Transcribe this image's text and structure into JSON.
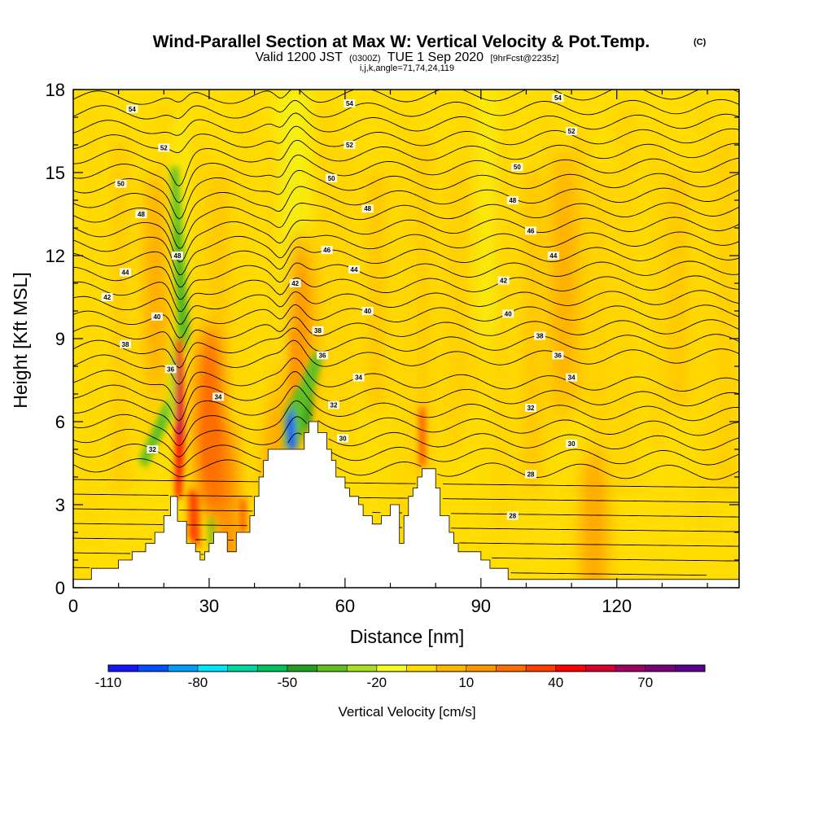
{
  "chart_data": {
    "type": "heatmap",
    "title": "Wind-Parallel Section at Max W: Vertical Velocity & Pot.Temp.",
    "title_mark": "(C)",
    "subtitle": {
      "valid": "Valid 1200 JST",
      "utc": "(0300Z)",
      "date": "TUE 1 Sep 2020",
      "fcst": "[9hrFcst@2235z]"
    },
    "info_line": "i,j,k,angle=71,74,24,119",
    "xlabel": "Distance [nm]",
    "ylabel": "Height [Kft MSL]",
    "xlim": [
      0,
      147
    ],
    "ylim": [
      0,
      18
    ],
    "xticks": [
      0,
      30,
      60,
      90,
      120
    ],
    "xtick_labels": [
      "0",
      "30",
      "60",
      "90",
      "120"
    ],
    "yticks": [
      0,
      3,
      6,
      9,
      12,
      15,
      18
    ],
    "ytick_labels": [
      "0",
      "3",
      "6",
      "9",
      "12",
      "15",
      "18"
    ],
    "colorbar": {
      "label": "Vertical Velocity [cm/s]",
      "tick_labels": [
        "-110",
        "-80",
        "-50",
        "-20",
        "10",
        "40",
        "70"
      ],
      "colors": [
        "#1414ff",
        "#0050ff",
        "#009dff",
        "#00e6ff",
        "#00d6a0",
        "#00c060",
        "#20a020",
        "#60c020",
        "#a8e020",
        "#f0ff20",
        "#ffdd00",
        "#ffb400",
        "#ff9600",
        "#ff6e00",
        "#ff3c00",
        "#ff0000",
        "#d80030",
        "#a00060",
        "#780078",
        "#5a0090"
      ]
    },
    "terrain_profile": [
      [
        0,
        0.3
      ],
      [
        4,
        0.3
      ],
      [
        4,
        0.7
      ],
      [
        10,
        0.7
      ],
      [
        10,
        1.0
      ],
      [
        13,
        1.0
      ],
      [
        13,
        1.3
      ],
      [
        16,
        1.3
      ],
      [
        16,
        1.6
      ],
      [
        18,
        1.6
      ],
      [
        18,
        2.0
      ],
      [
        20,
        2.0
      ],
      [
        20,
        2.6
      ],
      [
        21.5,
        2.6
      ],
      [
        21.5,
        3.3
      ],
      [
        23,
        3.3
      ],
      [
        23,
        2.4
      ],
      [
        25,
        2.4
      ],
      [
        25,
        1.6
      ],
      [
        27,
        1.6
      ],
      [
        27,
        1.3
      ],
      [
        28,
        1.3
      ],
      [
        28,
        1.0
      ],
      [
        29,
        1.0
      ],
      [
        29,
        1.3
      ],
      [
        30,
        1.3
      ],
      [
        30,
        1.6
      ],
      [
        31,
        1.6
      ],
      [
        31,
        2.0
      ],
      [
        34,
        2.0
      ],
      [
        34,
        1.3
      ],
      [
        36,
        1.3
      ],
      [
        36,
        2.0
      ],
      [
        39,
        2.0
      ],
      [
        39,
        2.6
      ],
      [
        40,
        2.6
      ],
      [
        40,
        3.3
      ],
      [
        41,
        3.3
      ],
      [
        41,
        4.0
      ],
      [
        42,
        4.0
      ],
      [
        42,
        4.6
      ],
      [
        43,
        4.6
      ],
      [
        43,
        5.0
      ],
      [
        51,
        5.0
      ],
      [
        51,
        5.6
      ],
      [
        52,
        5.6
      ],
      [
        52,
        6.0
      ],
      [
        54,
        6.0
      ],
      [
        54,
        5.6
      ],
      [
        56,
        5.6
      ],
      [
        56,
        5.0
      ],
      [
        57,
        5.0
      ],
      [
        57,
        4.6
      ],
      [
        58,
        4.6
      ],
      [
        58,
        4.0
      ],
      [
        60,
        4.0
      ],
      [
        60,
        3.6
      ],
      [
        61,
        3.6
      ],
      [
        61,
        3.3
      ],
      [
        63,
        3.3
      ],
      [
        63,
        3.0
      ],
      [
        64,
        3.0
      ],
      [
        64,
        2.6
      ],
      [
        66,
        2.6
      ],
      [
        66,
        2.3
      ],
      [
        68,
        2.3
      ],
      [
        68,
        2.6
      ],
      [
        70,
        2.6
      ],
      [
        70,
        3.0
      ],
      [
        72,
        3.0
      ],
      [
        72,
        1.6
      ],
      [
        73,
        1.6
      ],
      [
        73,
        2.6
      ],
      [
        74,
        2.6
      ],
      [
        74,
        3.3
      ],
      [
        75,
        3.3
      ],
      [
        75,
        3.6
      ],
      [
        76,
        3.6
      ],
      [
        76,
        4.0
      ],
      [
        77,
        4.0
      ],
      [
        77,
        4.3
      ],
      [
        80,
        4.3
      ],
      [
        80,
        3.6
      ],
      [
        81,
        3.6
      ],
      [
        81,
        2.6
      ],
      [
        83,
        2.6
      ],
      [
        83,
        2.0
      ],
      [
        84,
        2.0
      ],
      [
        84,
        1.6
      ],
      [
        85,
        1.6
      ],
      [
        85,
        1.3
      ],
      [
        90,
        1.3
      ],
      [
        90,
        1.0
      ],
      [
        92,
        1.0
      ],
      [
        92,
        0.7
      ],
      [
        96,
        0.7
      ],
      [
        96,
        0.3
      ],
      [
        147,
        0.3
      ]
    ],
    "contour_labels": [
      {
        "text": "54",
        "x": 13,
        "y": 17.3
      },
      {
        "text": "54",
        "x": 61,
        "y": 17.5
      },
      {
        "text": "54",
        "x": 107,
        "y": 17.7
      },
      {
        "text": "52",
        "x": 20,
        "y": 15.9
      },
      {
        "text": "52",
        "x": 61,
        "y": 16.0
      },
      {
        "text": "52",
        "x": 110,
        "y": 16.5
      },
      {
        "text": "50",
        "x": 10.5,
        "y": 14.6
      },
      {
        "text": "50",
        "x": 57,
        "y": 14.8
      },
      {
        "text": "50",
        "x": 98,
        "y": 15.2
      },
      {
        "text": "48",
        "x": 15,
        "y": 13.5
      },
      {
        "text": "48",
        "x": 65,
        "y": 13.7
      },
      {
        "text": "48",
        "x": 97,
        "y": 14.0
      },
      {
        "text": "48",
        "x": 23,
        "y": 12.0
      },
      {
        "text": "46",
        "x": 56,
        "y": 12.2
      },
      {
        "text": "46",
        "x": 101,
        "y": 12.9
      },
      {
        "text": "44",
        "x": 11.5,
        "y": 11.4
      },
      {
        "text": "44",
        "x": 62,
        "y": 11.5
      },
      {
        "text": "44",
        "x": 106,
        "y": 12.0
      },
      {
        "text": "42",
        "x": 7.5,
        "y": 10.5
      },
      {
        "text": "42",
        "x": 49,
        "y": 11.0
      },
      {
        "text": "42",
        "x": 95,
        "y": 11.1
      },
      {
        "text": "40",
        "x": 18.5,
        "y": 9.8
      },
      {
        "text": "40",
        "x": 65,
        "y": 10.0
      },
      {
        "text": "40",
        "x": 96,
        "y": 9.9
      },
      {
        "text": "38",
        "x": 11.5,
        "y": 8.8
      },
      {
        "text": "38",
        "x": 54,
        "y": 9.3
      },
      {
        "text": "38",
        "x": 103,
        "y": 9.1
      },
      {
        "text": "36",
        "x": 21.5,
        "y": 7.9
      },
      {
        "text": "36",
        "x": 55,
        "y": 8.4
      },
      {
        "text": "36",
        "x": 107,
        "y": 8.4
      },
      {
        "text": "34",
        "x": 32,
        "y": 6.9
      },
      {
        "text": "34",
        "x": 63,
        "y": 7.6
      },
      {
        "text": "34",
        "x": 110,
        "y": 7.6
      },
      {
        "text": "32",
        "x": 57.5,
        "y": 6.6
      },
      {
        "text": "32",
        "x": 101,
        "y": 6.5
      },
      {
        "text": "32",
        "x": 17.5,
        "y": 5.0
      },
      {
        "text": "30",
        "x": 59.5,
        "y": 5.4
      },
      {
        "text": "30",
        "x": 110,
        "y": 5.2
      },
      {
        "text": "28",
        "x": 101,
        "y": 4.1
      },
      {
        "text": "28",
        "x": 97,
        "y": 2.6
      }
    ]
  }
}
